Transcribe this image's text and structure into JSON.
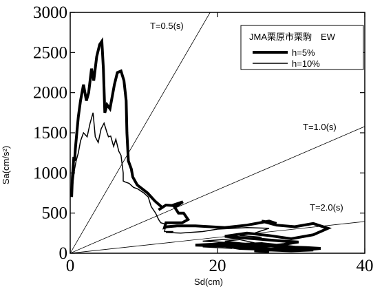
{
  "chart_data": {
    "type": "line",
    "title": "",
    "xlabel": "Sd(cm)",
    "ylabel": "Sa(cm/s²)",
    "xlim": [
      0,
      40
    ],
    "ylim": [
      0,
      3000
    ],
    "xticks": [
      "0",
      "20",
      "40"
    ],
    "yticks": [
      "0",
      "500",
      "1000",
      "1500",
      "2000",
      "2500",
      "3000"
    ],
    "grid": false,
    "legend": {
      "placement": "top-right",
      "title": "JMA栗原市栗駒　EW",
      "entries": [
        "h=5%",
        "h=10%"
      ]
    },
    "period_lines": [
      {
        "label": "T=0.5(s)",
        "period": 0.5
      },
      {
        "label": "T=1.0(s)",
        "period": 1.0
      },
      {
        "label": "T=2.0(s)",
        "period": 2.0
      }
    ],
    "series": [
      {
        "name": "h=5%",
        "x": [
          0.2,
          0.3,
          0.5,
          0.6,
          0.7,
          0.9,
          1.1,
          1.4,
          1.8,
          2.2,
          2.5,
          2.9,
          3.2,
          3.6,
          4.0,
          4.3,
          4.5,
          4.7,
          5.0,
          5.4,
          6.0,
          6.4,
          6.9,
          7.3,
          7.6,
          7.7,
          7.9,
          8.3,
          8.5,
          9.1,
          10.5,
          11.5,
          12.5,
          12.0,
          13.0,
          14.5,
          15.3,
          14.0,
          14.7,
          15.4,
          16.0,
          15.2,
          14.0,
          13.0,
          12.8,
          13.2,
          14.5,
          17.0,
          21.0,
          24.0,
          27.0,
          28.0,
          26.0,
          28.0,
          30.5,
          33.0,
          35.0,
          33.0,
          30.0,
          27.0,
          24.0,
          21.0,
          25.0,
          29.0,
          31.0,
          29.0,
          26.0,
          21.0,
          17.0,
          21.0,
          25.0,
          29.0,
          32.0,
          34.0,
          32.0,
          29.0,
          26.0,
          23.0,
          21.0,
          23.0,
          26.0,
          29.0,
          32.0,
          33.0,
          30.0,
          27.0,
          25.0,
          27.0
        ],
        "y": [
          700,
          950,
          1200,
          1150,
          1300,
          1500,
          1700,
          1900,
          2100,
          1900,
          2000,
          2300,
          2150,
          2450,
          2600,
          2640,
          2300,
          1750,
          1850,
          1800,
          2100,
          2250,
          2270,
          2150,
          1900,
          1500,
          1150,
          1050,
          950,
          850,
          750,
          650,
          570,
          540,
          600,
          590,
          640,
          600,
          500,
          500,
          420,
          380,
          380,
          380,
          320,
          330,
          340,
          340,
          320,
          350,
          400,
          370,
          400,
          350,
          330,
          370,
          310,
          230,
          180,
          220,
          250,
          210,
          180,
          150,
          140,
          110,
          80,
          90,
          100,
          120,
          110,
          80,
          70,
          60,
          40,
          60,
          50,
          60,
          90,
          110,
          120,
          90,
          60,
          40,
          30,
          40,
          30,
          20
        ]
      },
      {
        "name": "h=10%",
        "x": [
          0.2,
          0.4,
          0.6,
          0.8,
          1.1,
          1.4,
          1.8,
          2.3,
          2.7,
          3.1,
          3.4,
          3.8,
          4.2,
          4.6,
          5.0,
          5.2,
          5.5,
          5.9,
          6.2,
          6.6,
          6.9,
          7.2,
          7.2,
          7.4,
          8.0,
          8.6,
          9.2,
          10.0,
          10.6,
          11.0,
          11.6,
          12.0,
          12.3,
          13.0,
          12.8,
          14.0,
          13.0,
          15.0,
          18.0,
          20.0,
          24.0,
          27.0,
          25.0,
          23.0,
          26.0,
          22.0,
          18.0,
          24.0,
          21.0,
          23.0,
          25.0,
          21.0,
          18.0,
          22.0
        ],
        "y": [
          720,
          900,
          1050,
          1150,
          1250,
          1400,
          1500,
          1450,
          1620,
          1750,
          1450,
          1380,
          1550,
          1620,
          1500,
          1450,
          1460,
          1330,
          1420,
          1270,
          1220,
          1000,
          900,
          890,
          870,
          820,
          800,
          750,
          700,
          580,
          500,
          420,
          380,
          360,
          270,
          270,
          260,
          250,
          270,
          300,
          320,
          310,
          250,
          220,
          200,
          180,
          150,
          120,
          150,
          170,
          130,
          100,
          80,
          60
        ]
      }
    ]
  }
}
